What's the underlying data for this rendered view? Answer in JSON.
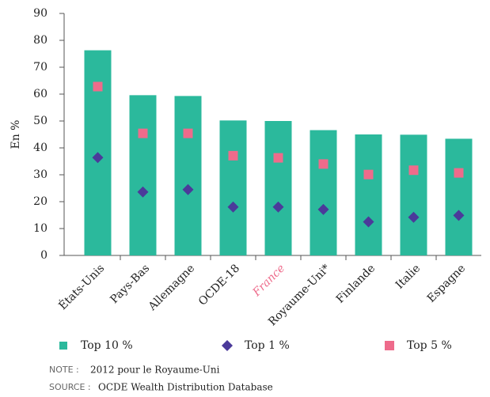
{
  "chart_data": {
    "type": "bar",
    "y_label": "En %",
    "categories": [
      "États-Unis",
      "Pays-Bas",
      "Allemagne",
      "OCDE-18",
      "France",
      "Royaume-Uni*",
      "Finlande",
      "Italie",
      "Espagne"
    ],
    "highlight_index": 4,
    "highlight_color": "#ee6b8b",
    "series": [
      {
        "name": "Top 10 %",
        "color": "#2bb99c",
        "marker": "bar",
        "values": [
          76.3,
          59.6,
          59.3,
          50.2,
          50,
          46.6,
          45,
          44.9,
          43.4
        ]
      },
      {
        "name": "Top 1 %",
        "color": "#4b3a9a",
        "marker": "diamond",
        "values": [
          36.4,
          23.6,
          24.5,
          18,
          18,
          17.1,
          12.5,
          14.2,
          14.9
        ]
      },
      {
        "name": "Top 5 %",
        "color": "#ee6b8b",
        "marker": "square",
        "values": [
          62.8,
          45.4,
          45.4,
          37.1,
          36.3,
          34,
          30.1,
          31.7,
          30.7
        ]
      }
    ],
    "ylim": [
      0,
      90
    ],
    "yticks": [
      0,
      10,
      20,
      30,
      40,
      50,
      60,
      70,
      80,
      90
    ],
    "note_label": "NOTE :",
    "note": "2012 pour le Royaume-Uni",
    "source_label": "SOURCE :",
    "source": "OCDE Wealth Distribution Database"
  }
}
